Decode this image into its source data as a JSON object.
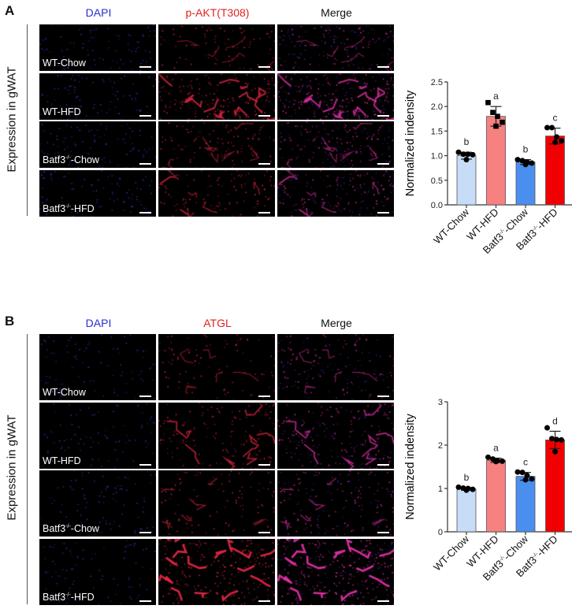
{
  "figure": {
    "panels": [
      {
        "letter": "A",
        "side_label": "Expression in gWAT",
        "columns": [
          {
            "label": "DAPI",
            "color": "#2b2bd0"
          },
          {
            "label": "p-AKT(T308)",
            "color": "#e02020"
          },
          {
            "label": "Merge",
            "color": "#111111"
          }
        ],
        "rows": [
          {
            "label_main": "WT-Chow",
            "label_base": "",
            "label_sup": "",
            "label_tail": ""
          },
          {
            "label_main": "WT-HFD",
            "label_base": "",
            "label_sup": "",
            "label_tail": ""
          },
          {
            "label_main": "",
            "label_base": "Batf3",
            "label_sup": "-/-",
            "label_tail": "-Chow"
          },
          {
            "label_main": "",
            "label_base": "Batf3",
            "label_sup": "-/-",
            "label_tail": "-HFD"
          }
        ]
      },
      {
        "letter": "B",
        "side_label": "Expression in gWAT",
        "columns": [
          {
            "label": "DAPI",
            "color": "#2b2bd0"
          },
          {
            "label": "ATGL",
            "color": "#e02020"
          },
          {
            "label": "Merge",
            "color": "#111111"
          }
        ],
        "rows": [
          {
            "label_main": "WT-Chow",
            "label_base": "",
            "label_sup": "",
            "label_tail": ""
          },
          {
            "label_main": "WT-HFD",
            "label_base": "",
            "label_sup": "",
            "label_tail": ""
          },
          {
            "label_main": "",
            "label_base": "Batf3",
            "label_sup": "-/-",
            "label_tail": "-Chow"
          },
          {
            "label_main": "",
            "label_base": "Batf3",
            "label_sup": "-/-",
            "label_tail": "-HFD"
          }
        ]
      }
    ]
  },
  "chart_data": [
    {
      "type": "bar",
      "panel": "A",
      "title": "",
      "xlabel": "",
      "ylabel": "Normalized indensity",
      "categories": [
        "WT-Chow",
        "WT-HFD",
        "Batf3-/--Chow",
        "Batf3-/--HFD"
      ],
      "values": [
        1.0,
        1.8,
        0.87,
        1.4
      ],
      "errors": [
        0.07,
        0.2,
        0.05,
        0.16
      ],
      "significance_letters": [
        "b",
        "a",
        "b",
        "c"
      ],
      "bar_colors": [
        "#c6dcf7",
        "#f78080",
        "#4a8ff0",
        "#f00000"
      ],
      "points": [
        [
          1.07,
          1.03,
          1.03,
          1.02,
          0.92
        ],
        [
          2.08,
          1.88,
          1.8,
          1.68,
          1.6
        ],
        [
          0.92,
          0.9,
          0.87,
          0.85,
          0.82
        ],
        [
          1.57,
          1.57,
          1.38,
          1.3,
          1.27
        ]
      ],
      "yticks": [
        "0.0",
        "0.5",
        "1.0",
        "1.5",
        "2.0",
        "2.5"
      ],
      "ylim": [
        0,
        2.5
      ],
      "grid": false,
      "legend": "none"
    },
    {
      "type": "bar",
      "panel": "B",
      "title": "",
      "xlabel": "",
      "ylabel": "Normalized indensity",
      "categories": [
        "WT-Chow",
        "WT-HFD",
        "Batf3-/--Chow",
        "Batf3-/--HFD"
      ],
      "values": [
        0.99,
        1.65,
        1.28,
        2.12
      ],
      "errors": [
        0.03,
        0.05,
        0.09,
        0.2
      ],
      "significance_letters": [
        "b",
        "a",
        "c",
        "d"
      ],
      "bar_colors": [
        "#c6dcf7",
        "#f78080",
        "#4a8ff0",
        "#f00000"
      ],
      "points": [
        [
          1.03,
          1.01,
          1.0,
          0.98,
          0.96
        ],
        [
          1.72,
          1.68,
          1.64,
          1.63,
          1.62
        ],
        [
          1.38,
          1.37,
          1.3,
          1.22,
          1.2
        ],
        [
          2.4,
          2.15,
          2.13,
          2.12,
          1.85
        ]
      ],
      "yticks": [
        "0",
        "1",
        "2",
        "3"
      ],
      "ylim": [
        0,
        3
      ],
      "grid": false,
      "legend": "none"
    }
  ]
}
